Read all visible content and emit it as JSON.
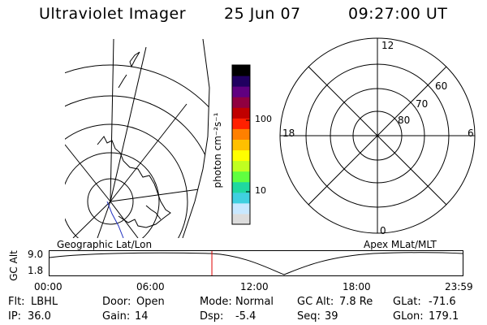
{
  "header": {
    "instrument": "Ultraviolet Imager",
    "date": "25 Jun 07",
    "time": "09:27:00 UT"
  },
  "colorbar": {
    "unit_label": "photon cm⁻²s⁻¹",
    "ticks": [
      "100",
      "10"
    ],
    "colors": [
      "#dcdcdc",
      "#c8e8ff",
      "#40d0e0",
      "#20d8a0",
      "#60ff40",
      "#c0ff20",
      "#ffff00",
      "#ffc000",
      "#ff8000",
      "#ff2000",
      "#c00000",
      "#900040",
      "#600080",
      "#200060",
      "#000000"
    ]
  },
  "geo_map": {
    "label": "Geographic Lat/Lon"
  },
  "polar_plot": {
    "label": "Apex MLat/MLT",
    "mlt_labels": {
      "top": "12",
      "left": "18",
      "right": "6",
      "bottom": "0"
    },
    "lat_labels": [
      "60",
      "70",
      "80"
    ]
  },
  "altitude_plot": {
    "ylabel": "GC Alt",
    "ymax": "9.0",
    "ymin": "1.8",
    "x_ticks": [
      "00:00",
      "06:00",
      "12:00",
      "18:00",
      "23:59"
    ],
    "current_time_fraction": 0.393
  },
  "footer": {
    "row1": [
      {
        "key": "Flt:",
        "value": "LBHL"
      },
      {
        "key": "Door:",
        "value": "Open"
      },
      {
        "key": "Mode:",
        "value": "Normal"
      },
      {
        "key": "GC Alt:",
        "value": "7.8 Re"
      },
      {
        "key": "GLat:",
        "value": "-71.6"
      }
    ],
    "row2": [
      {
        "key": "IP:",
        "value": "36.0"
      },
      {
        "key": "Gain:",
        "value": "14"
      },
      {
        "key": "Dsp:",
        "value": "-5.4"
      },
      {
        "key": "Seq:",
        "value": "39"
      },
      {
        "key": "GLon:",
        "value": "179.1"
      }
    ]
  }
}
